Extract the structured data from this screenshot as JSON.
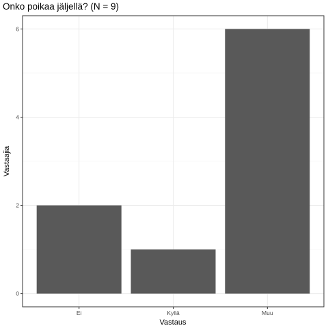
{
  "chart_data": {
    "type": "bar",
    "title": "Onko poikaa jäljellä? (N = 9)",
    "xlabel": "Vastaus",
    "ylabel": "Vastaajia",
    "categories": [
      "Ei",
      "Kyllä",
      "Muu"
    ],
    "values": [
      2,
      1,
      6
    ],
    "ylim": [
      -0.3,
      6.3
    ],
    "yticks": [
      0,
      2,
      4,
      6
    ],
    "ytick_labels": [
      "0",
      "2",
      "4",
      "6"
    ],
    "grid": true,
    "legend": "none",
    "colors": {
      "bar": "#595959",
      "grid_major": "#ebebeb",
      "grid_minor": "#f5f5f5",
      "panel_border": "#333333",
      "tick_label": "#4d4d4d"
    }
  }
}
